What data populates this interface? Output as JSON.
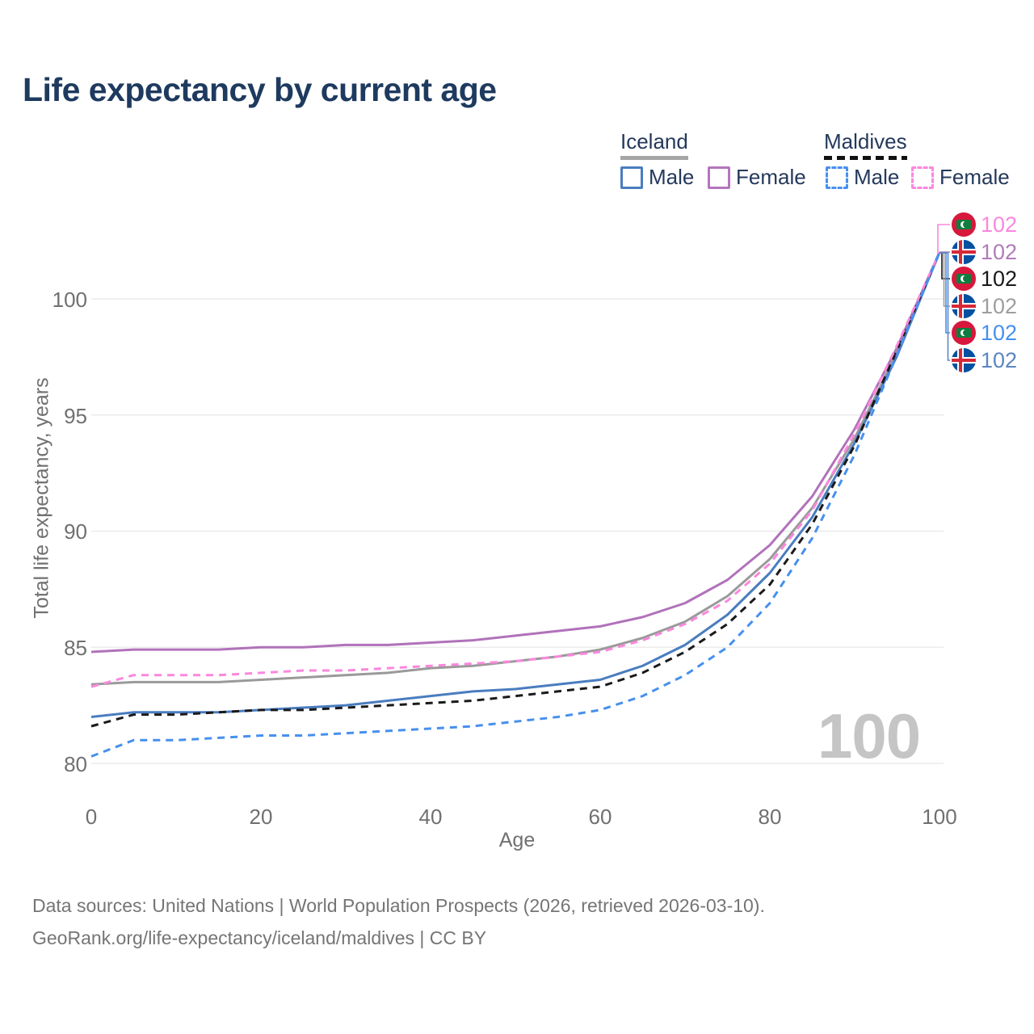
{
  "title": {
    "text": "Life expectancy by current age",
    "color": "#1e3a5f"
  },
  "legend": {
    "groups": [
      {
        "label": "Iceland",
        "underline_style": "solid",
        "underline_color": "#a6a6a6",
        "items": [
          {
            "label": "Male",
            "swatch_color": "#4a7dbf",
            "swatch_style": "solid"
          },
          {
            "label": "Female",
            "swatch_color": "#b475bd",
            "swatch_style": "solid"
          }
        ]
      },
      {
        "label": "Maldives",
        "underline_style": "dashed",
        "underline_color": "#111111",
        "items": [
          {
            "label": "Male",
            "swatch_color": "#4690ee",
            "swatch_style": "dashed"
          },
          {
            "label": "Female",
            "swatch_color": "#fb87de",
            "swatch_style": "dashed"
          }
        ]
      }
    ]
  },
  "endpoints": {
    "rows": [
      {
        "flag": "maldives",
        "series": "Maldives Female",
        "value": "102",
        "color": "#fb87de"
      },
      {
        "flag": "iceland",
        "series": "Iceland Female",
        "value": "102",
        "color": "#b07cb8"
      },
      {
        "flag": "maldives",
        "series": "Maldives Both sexes",
        "value": "102",
        "color": "#1a1a1a"
      },
      {
        "flag": "iceland",
        "series": "Iceland Both sexes",
        "value": "102",
        "color": "#9e9e9e"
      },
      {
        "flag": "maldives",
        "series": "Maldives Male",
        "value": "102",
        "color": "#4690ee"
      },
      {
        "flag": "iceland",
        "series": "Iceland Male",
        "value": "102",
        "color": "#5b86c2"
      }
    ]
  },
  "watermark": "100",
  "axes": {
    "x": {
      "label": "Age",
      "ticks": [
        "0",
        "20",
        "40",
        "60",
        "80",
        "100"
      ]
    },
    "y": {
      "label": "Total life expectancy, years",
      "ticks": [
        "80",
        "85",
        "90",
        "95",
        "100"
      ]
    }
  },
  "footer": {
    "line1": "Data sources: United Nations | World Population Prospects (2026, retrieved 2026-03-10).",
    "line2": "GeoRank.org/life-expectancy/iceland/maldives | CC BY"
  },
  "chart_data": {
    "type": "line",
    "title": "Life expectancy by current age",
    "xlabel": "Age",
    "ylabel": "Total life expectancy, years",
    "xlim": [
      0,
      100
    ],
    "ylim": [
      79.4,
      103
    ],
    "x_ticks": [
      0,
      20,
      40,
      60,
      80,
      100
    ],
    "y_ticks": [
      80,
      85,
      90,
      95,
      100
    ],
    "grid": "horizontal-only",
    "legend_position": "top-right",
    "end_value_label": "102",
    "x": [
      0,
      5,
      10,
      15,
      20,
      25,
      30,
      35,
      40,
      45,
      50,
      55,
      60,
      65,
      70,
      75,
      80,
      85,
      90,
      95,
      100
    ],
    "series": [
      {
        "name": "Iceland Both sexes",
        "color": "#9a9a9a",
        "dash": "solid",
        "values": [
          83.4,
          83.5,
          83.5,
          83.5,
          83.6,
          83.7,
          83.8,
          83.9,
          84.1,
          84.2,
          84.4,
          84.6,
          84.9,
          85.4,
          86.1,
          87.2,
          88.8,
          91.0,
          94.0,
          97.7,
          102
        ]
      },
      {
        "name": "Iceland Female",
        "color": "#b172ba",
        "dash": "solid",
        "values": [
          84.8,
          84.9,
          84.9,
          84.9,
          85.0,
          85.0,
          85.1,
          85.1,
          85.2,
          85.3,
          85.5,
          85.7,
          85.9,
          86.3,
          86.9,
          87.9,
          89.4,
          91.5,
          94.4,
          97.9,
          102
        ]
      },
      {
        "name": "Iceland Male",
        "color": "#4a7dbf",
        "dash": "solid",
        "values": [
          82.0,
          82.2,
          82.2,
          82.2,
          82.3,
          82.4,
          82.5,
          82.7,
          82.9,
          83.1,
          83.2,
          83.4,
          83.6,
          84.2,
          85.1,
          86.4,
          88.2,
          90.6,
          93.8,
          97.55,
          102
        ]
      },
      {
        "name": "Maldives Both sexes",
        "color": "#1a1a1a",
        "dash": "dashed",
        "values": [
          81.6,
          82.1,
          82.1,
          82.2,
          82.3,
          82.3,
          82.4,
          82.5,
          82.6,
          82.7,
          82.9,
          83.1,
          83.3,
          83.9,
          84.8,
          86.0,
          87.7,
          90.3,
          93.7,
          97.8,
          102
        ]
      },
      {
        "name": "Maldives Female",
        "color": "#fb87de",
        "dash": "dashed",
        "values": [
          83.3,
          83.8,
          83.8,
          83.8,
          83.9,
          84.0,
          84.0,
          84.1,
          84.2,
          84.3,
          84.4,
          84.6,
          84.8,
          85.3,
          86.0,
          87.0,
          88.6,
          90.9,
          94.2,
          98.0,
          102
        ]
      },
      {
        "name": "Maldives Male",
        "color": "#4690ee",
        "dash": "dashed",
        "values": [
          80.3,
          81.0,
          81.0,
          81.1,
          81.2,
          81.2,
          81.3,
          81.4,
          81.5,
          81.6,
          81.8,
          82.0,
          82.3,
          82.9,
          83.8,
          85.0,
          86.9,
          89.7,
          93.3,
          97.6,
          102
        ]
      }
    ]
  }
}
